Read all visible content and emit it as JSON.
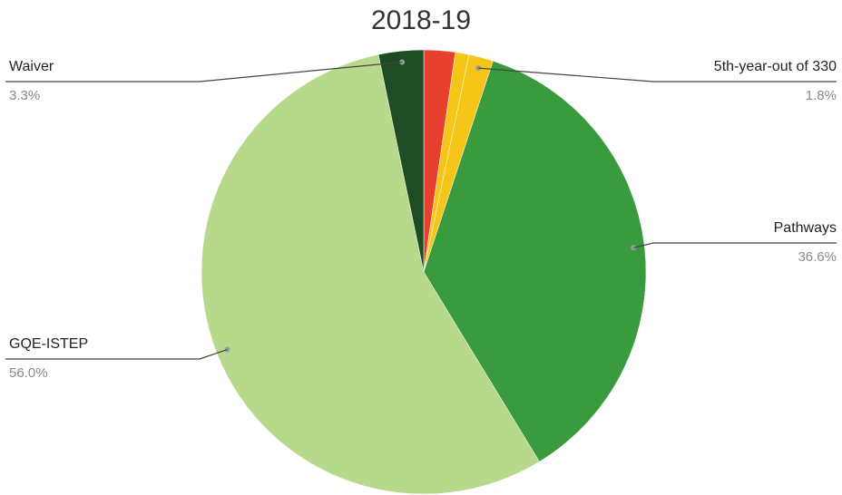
{
  "chart_data": {
    "type": "pie",
    "title": "2018-19",
    "slices": [
      {
        "label": "",
        "value": 2.3,
        "color": "#e8402f",
        "show_label": false
      },
      {
        "label": "",
        "value": 1.0,
        "color": "#f5c518",
        "show_label": false
      },
      {
        "label": "5th-year-out of 330",
        "value": 1.8,
        "color": "#f5c518",
        "percent_label": "1.8%",
        "show_label": true,
        "side": "right"
      },
      {
        "label": "Pathways",
        "value": 36.6,
        "color": "#3a9a3e",
        "percent_label": "36.6%",
        "show_label": true,
        "side": "right"
      },
      {
        "label": "GQE-ISTEP",
        "value": 56.0,
        "color": "#b7d98b",
        "percent_label": "56.0%",
        "show_label": true,
        "side": "left"
      },
      {
        "label": "Waiver",
        "value": 3.3,
        "color": "#1f4d23",
        "percent_label": "3.3%",
        "show_label": true,
        "side": "left"
      }
    ],
    "legend": "none",
    "label_style": "callout-lines"
  }
}
